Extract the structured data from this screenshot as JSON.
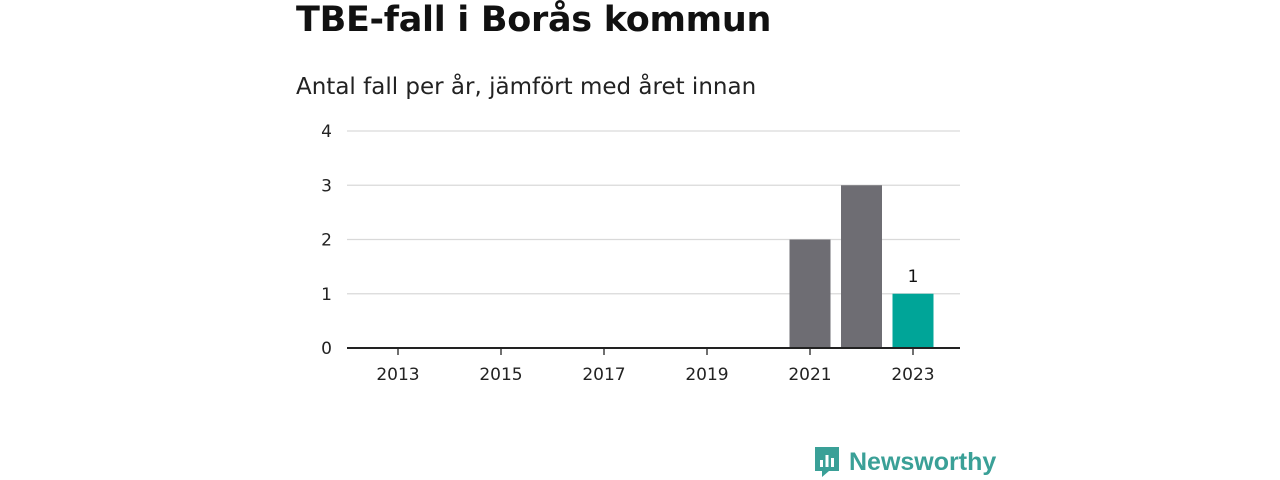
{
  "title": "TBE-fall i Borås kommun",
  "subtitle": "Antal fall per år, jämfört med året innan",
  "brand": {
    "name": "Newsworthy",
    "icon": "newsworthy-logo-icon",
    "color": "#3aa097"
  },
  "colors": {
    "bar": "#6e6d73",
    "highlight": "#00a598",
    "grid": "#d9d9d9",
    "axis": "#222222"
  },
  "chart_data": {
    "type": "bar",
    "categories": [
      "2013",
      "2014",
      "2015",
      "2016",
      "2017",
      "2018",
      "2019",
      "2020",
      "2021",
      "2022",
      "2023"
    ],
    "x_tick_labels": [
      "2013",
      "2015",
      "2017",
      "2019",
      "2021",
      "2023"
    ],
    "values": [
      0,
      0,
      0,
      0,
      0,
      0,
      0,
      0,
      2,
      3,
      1
    ],
    "highlight_category": "2023",
    "data_labels": [
      {
        "category": "2023",
        "text": "1"
      }
    ],
    "y_ticks": [
      "0",
      "1",
      "2",
      "3",
      "4"
    ],
    "ylim": [
      0,
      4
    ],
    "grid": true,
    "xlabel": "",
    "ylabel": ""
  }
}
